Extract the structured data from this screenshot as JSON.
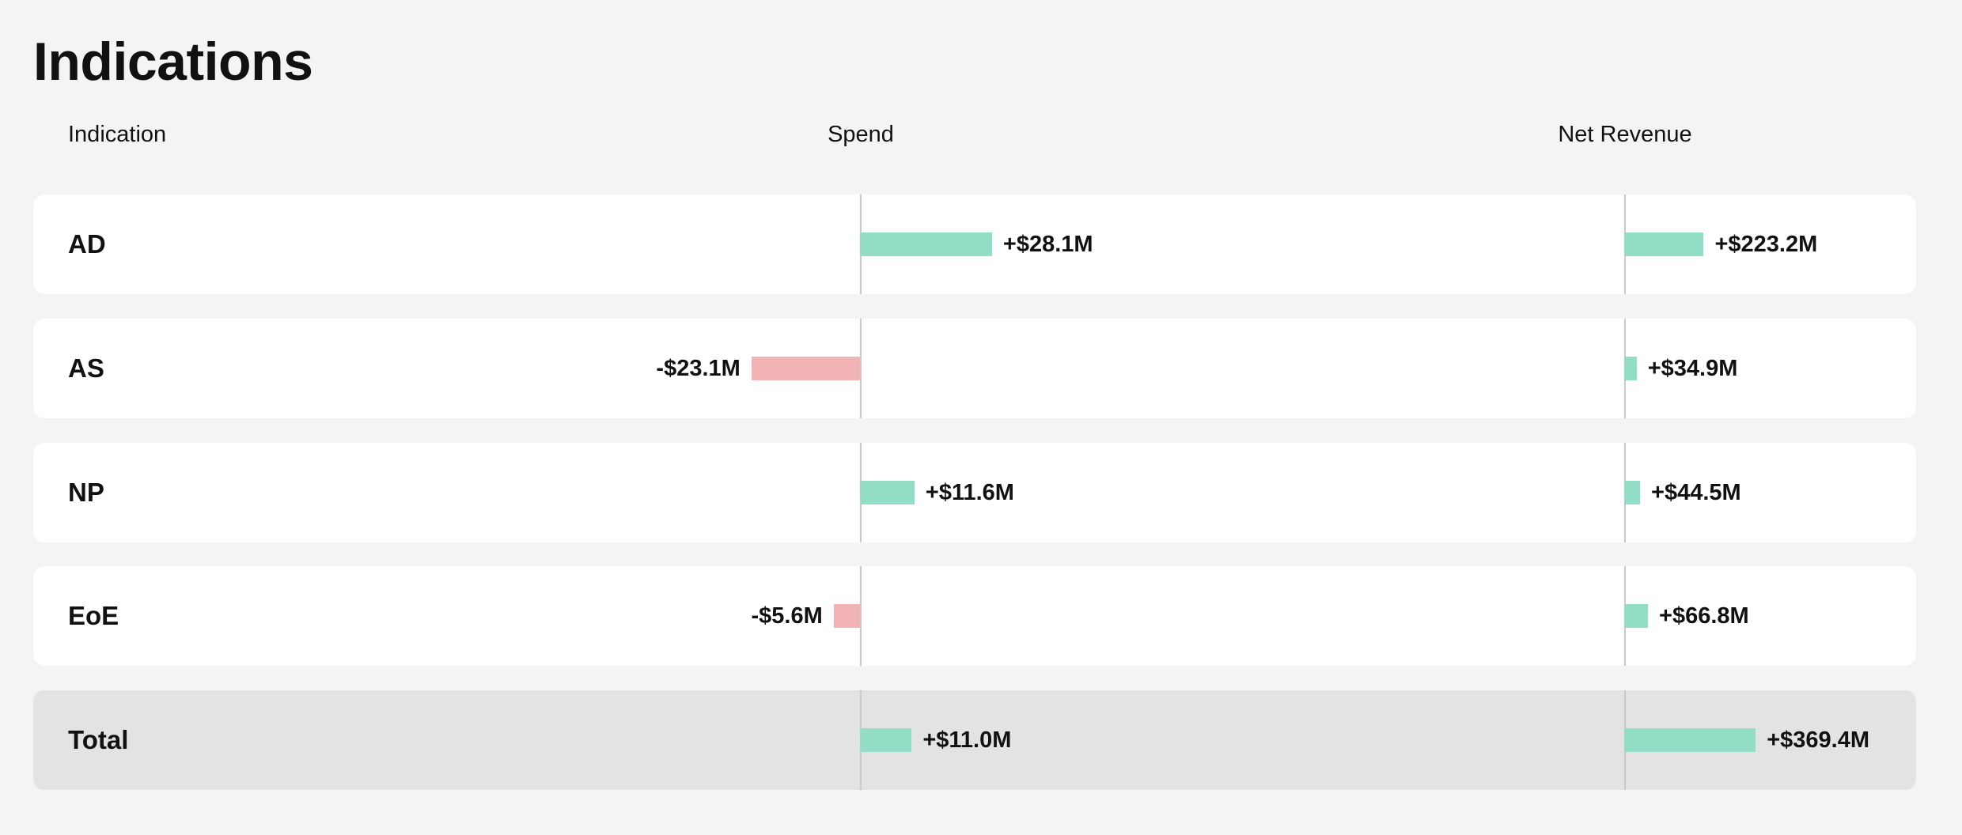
{
  "title": "Indications",
  "columns": {
    "indication": "Indication",
    "spend": "Spend",
    "net_revenue": "Net Revenue"
  },
  "colors": {
    "positive": "#93dcc6",
    "negative": "#f2b3b4",
    "row_background": "#ffffff",
    "total_background": "#e3e3e3",
    "axis": "#c9c9c9"
  },
  "chart_data": {
    "type": "bar",
    "categories": [
      "AD",
      "AS",
      "NP",
      "EoE",
      "Total"
    ],
    "series": [
      {
        "name": "Spend",
        "values": [
          28.1,
          -23.1,
          11.6,
          -5.6,
          11.0
        ],
        "labels": [
          "+$28.1M",
          "-$23.1M",
          "+$11.6M",
          "-$5.6M",
          "+$11.0M"
        ]
      },
      {
        "name": "Net Revenue",
        "values": [
          223.2,
          34.9,
          44.5,
          66.8,
          369.4
        ],
        "labels": [
          "+$223.2M",
          "+$34.9M",
          "+$44.5M",
          "+$66.8M",
          "+$369.4M"
        ]
      }
    ],
    "unit": "$M",
    "highlight_last_as_total": true
  }
}
